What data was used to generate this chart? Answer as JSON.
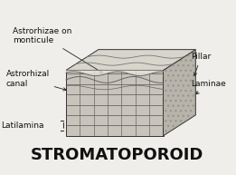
{
  "title": "STROMATOPOROID",
  "title_fontsize": 13,
  "title_fontweight": "bold",
  "bg_color": "#f0eeea",
  "labels": {
    "astrorhizae": "Astrorhizae on\nmonticule",
    "canal": "Astrorhizal\ncanal",
    "latilamina": "Latilamina",
    "pillar": "Pillar",
    "laminae": "Laminae"
  },
  "label_fontsize": 6.5,
  "figsize": [
    2.61,
    1.93
  ],
  "dpi": 100
}
